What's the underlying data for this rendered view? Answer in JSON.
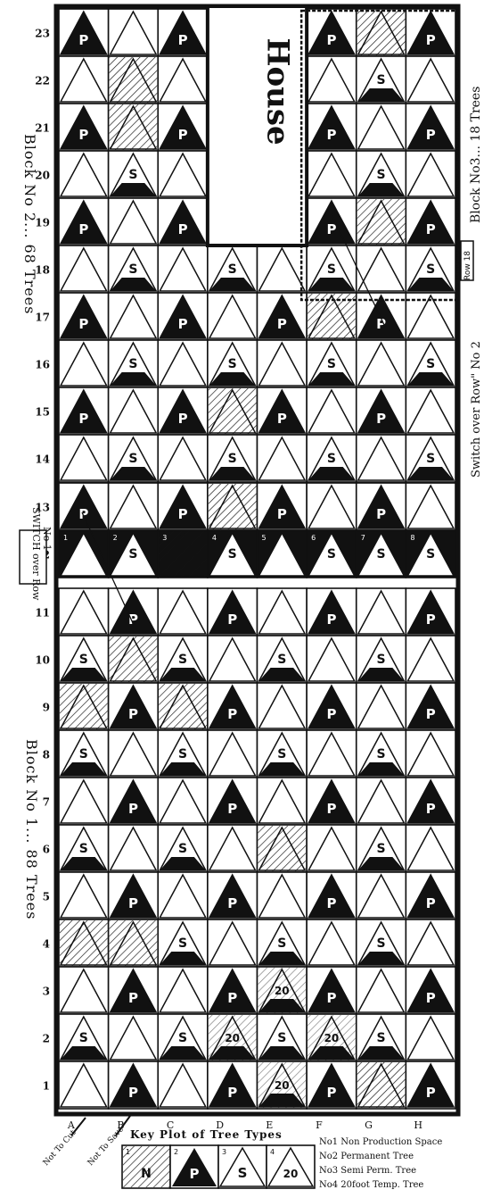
{
  "rows": [
    {
      "label": "23",
      "cells": [
        "P",
        "E",
        "P",
        "H",
        "H",
        "P",
        "D",
        "P"
      ]
    },
    {
      "label": "22",
      "cells": [
        "E",
        "D",
        "E",
        "H",
        "H",
        "E",
        "S",
        "E"
      ]
    },
    {
      "label": "21",
      "cells": [
        "P",
        "D",
        "P",
        "H",
        "H",
        "P",
        "E",
        "P"
      ]
    },
    {
      "label": "20",
      "cells": [
        "E",
        "S",
        "E",
        "H",
        "H",
        "E",
        "S",
        "E"
      ]
    },
    {
      "label": "19",
      "cells": [
        "P",
        "E",
        "P",
        "H",
        "H",
        "P",
        "D",
        "P"
      ]
    },
    {
      "label": "18",
      "cells": [
        "E",
        "S",
        "E",
        "S",
        "E",
        "S",
        "E",
        "S"
      ]
    },
    {
      "label": "17",
      "cells": [
        "P",
        "E",
        "P",
        "E",
        "P",
        "D",
        "P",
        "E"
      ]
    },
    {
      "label": "16",
      "cells": [
        "E",
        "S",
        "E",
        "S",
        "E",
        "S",
        "E",
        "S"
      ]
    },
    {
      "label": "15",
      "cells": [
        "P",
        "E",
        "P",
        "D",
        "P",
        "E",
        "P",
        "E"
      ]
    },
    {
      "label": "14",
      "cells": [
        "E",
        "S",
        "E",
        "S",
        "E",
        "S",
        "E",
        "S"
      ]
    },
    {
      "label": "13",
      "cells": [
        "P",
        "E",
        "P",
        "D",
        "P",
        "E",
        "P",
        "E"
      ]
    },
    {
      "label": "12",
      "cells": [
        "E",
        "S",
        "D",
        "S",
        "E",
        "S",
        "S",
        "S"
      ]
    },
    {
      "label": "11",
      "cells": [
        "E",
        "P",
        "E",
        "P",
        "E",
        "P",
        "E",
        "P"
      ]
    },
    {
      "label": "10",
      "cells": [
        "S",
        "D",
        "S",
        "E",
        "S",
        "E",
        "S",
        "E"
      ]
    },
    {
      "label": "9",
      "cells": [
        "D",
        "P",
        "D",
        "P",
        "E",
        "P",
        "E",
        "P"
      ]
    },
    {
      "label": "8",
      "cells": [
        "S",
        "E",
        "S",
        "E",
        "S",
        "E",
        "S",
        "E"
      ]
    },
    {
      "label": "7",
      "cells": [
        "E",
        "P",
        "E",
        "P",
        "E",
        "P",
        "E",
        "P"
      ]
    },
    {
      "label": "6",
      "cells": [
        "S",
        "E",
        "S",
        "E",
        "D",
        "E",
        "S",
        "E"
      ]
    },
    {
      "label": "5",
      "cells": [
        "E",
        "P",
        "E",
        "P",
        "E",
        "P",
        "E",
        "P"
      ]
    },
    {
      "label": "4",
      "cells": [
        "D",
        "D",
        "S",
        "E",
        "S",
        "E",
        "S",
        "E"
      ]
    },
    {
      "label": "3",
      "cells": [
        "E",
        "P",
        "E",
        "P",
        "T",
        "P",
        "E",
        "P"
      ]
    },
    {
      "label": "2",
      "cells": [
        "S",
        "E",
        "S",
        "T",
        "S",
        "T",
        "S",
        "E"
      ]
    },
    {
      "label": "1",
      "cells": [
        "E",
        "P",
        "E",
        "P",
        "T",
        "P",
        "D",
        "P"
      ]
    }
  ],
  "row12_numbers": [
    "1",
    "2",
    "3",
    "4",
    "5",
    "6",
    "7",
    "8"
  ],
  "columns": [
    "A",
    "B",
    "C",
    "D",
    "E",
    "F",
    "G",
    "H"
  ],
  "marks": {
    "P": "P",
    "S": "S",
    "T": "20"
  },
  "house_label": "House",
  "row18_tag": "Row 18",
  "block1": "Block No 1... 88 Trees",
  "block2": "Block No 2... 68 Trees",
  "block3": "Block No3... 18 Trees",
  "switch_row2": "Switch over Row\" No 2",
  "switch_row1_line1": "SWITCH over Row",
  "switch_row1_line2": "No 1",
  "arrow_cut": "Not To Cut",
  "arrow_save": "Not To Save",
  "key_title": "Key Plot of Tree Types",
  "key_items": [
    {
      "num": "1",
      "mark": "N"
    },
    {
      "num": "2",
      "mark": "P"
    },
    {
      "num": "3",
      "mark": "S"
    },
    {
      "num": "4",
      "mark": "20"
    }
  ],
  "legend": [
    "No1 Non Production Space",
    "No2 Permanent Tree",
    "No3 Semi Perm. Tree",
    "No4 20foot Temp. Tree"
  ],
  "colors": {
    "ink": "#111111",
    "paper": "#ffffff"
  }
}
